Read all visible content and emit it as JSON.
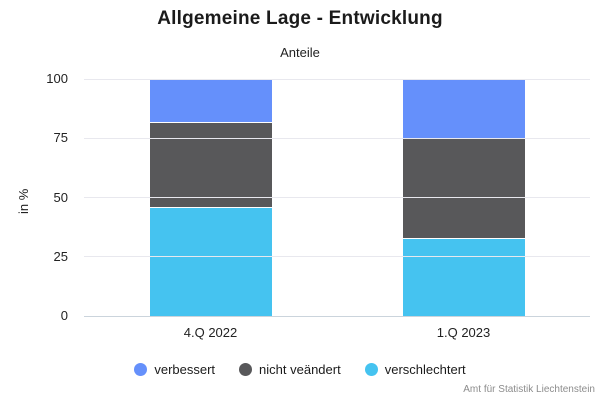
{
  "header": {
    "title": "Allgemeine Lage - Entwicklung",
    "subtitle": "Anteile"
  },
  "source": "Amt für Statistik Liechtenstein",
  "chart_data": {
    "type": "bar",
    "stacked": true,
    "title": "Allgemeine Lage - Entwicklung",
    "subtitle": "Anteile",
    "categories": [
      "4.Q 2022",
      "1.Q 2023"
    ],
    "series": [
      {
        "name": "verbessert",
        "color": "#6590fb",
        "values": [
          18,
          25
        ]
      },
      {
        "name": "nicht veändert",
        "color": "#58585a",
        "values": [
          36,
          42
        ]
      },
      {
        "name": "verschlechtert",
        "color": "#45c3f0",
        "values": [
          46,
          33
        ]
      }
    ],
    "xlabel": "",
    "ylabel": "in %",
    "ylim": [
      0,
      100
    ],
    "yticks": [
      0,
      25,
      50,
      75,
      100
    ],
    "grid": true,
    "legend_position": "bottom"
  },
  "colors": {
    "gridline": "#e8e8ee",
    "axis_line": "#cbd4dc",
    "segment_gap": "#ffffff",
    "title_text": "#1b1b1b",
    "tick_text": "#222222",
    "source_text": "#8c8c8c"
  }
}
